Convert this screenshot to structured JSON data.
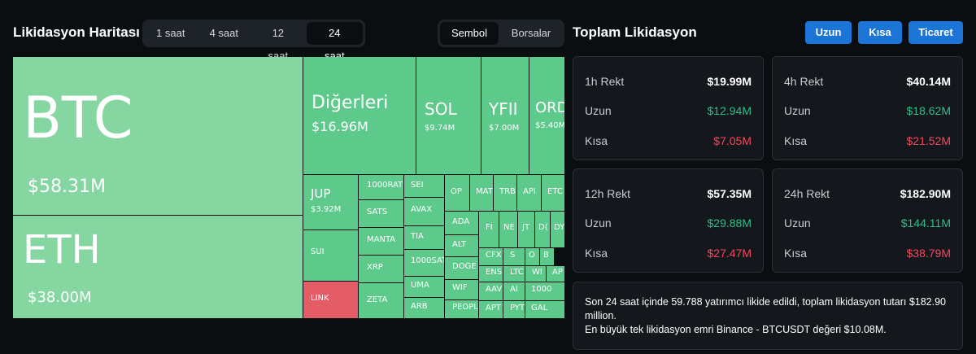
{
  "header": {
    "title": "Likidasyon Haritası",
    "timeframes": [
      "1 saat",
      "4 saat",
      "12 saat",
      "24 saat"
    ],
    "active_timeframe": "24 saat",
    "view_options": [
      "Sembol",
      "Borsalar"
    ],
    "active_view": "Sembol",
    "total_title": "Toplam Likidasyon",
    "buttons": {
      "long": "Uzun",
      "short": "Kısa",
      "trade": "Ticaret"
    }
  },
  "colors": {
    "long_green": "#2ebd85",
    "short_red": "#f6465d",
    "tile_green": "#5dca8c",
    "tile_light_green": "#86d6a2",
    "tile_red": "#e45c66",
    "button_blue": "#1b74d6"
  },
  "treemap": [
    {
      "symbol": "BTC",
      "value": "$58.31M",
      "tone": "light"
    },
    {
      "symbol": "ETH",
      "value": "$38.00M",
      "tone": "light"
    },
    {
      "symbol": "Diğerleri",
      "value": "$16.96M",
      "tone": "green"
    },
    {
      "symbol": "SOL",
      "value": "$9.74M",
      "tone": "green"
    },
    {
      "symbol": "YFII",
      "value": "$7.00M",
      "tone": "green"
    },
    {
      "symbol": "ORD",
      "value": "$5.40M",
      "tone": "green"
    },
    {
      "symbol": "JUP",
      "value": "$3.92M",
      "tone": "green"
    },
    {
      "symbol": "1000RATS",
      "tone": "green"
    },
    {
      "symbol": "SATS",
      "tone": "green"
    },
    {
      "symbol": "MANTA",
      "tone": "green"
    },
    {
      "symbol": "XRP",
      "tone": "green"
    },
    {
      "symbol": "ZETA",
      "tone": "green"
    },
    {
      "symbol": "SUI",
      "tone": "green"
    },
    {
      "symbol": "LINK",
      "tone": "red"
    },
    {
      "symbol": "SEI",
      "tone": "green"
    },
    {
      "symbol": "AVAX",
      "tone": "green"
    },
    {
      "symbol": "TIA",
      "tone": "green"
    },
    {
      "symbol": "1000SAT",
      "tone": "green"
    },
    {
      "symbol": "UMA",
      "tone": "green"
    },
    {
      "symbol": "ARB",
      "tone": "green"
    },
    {
      "symbol": "OP",
      "tone": "green"
    },
    {
      "symbol": "MAT",
      "tone": "green"
    },
    {
      "symbol": "TRB",
      "tone": "green"
    },
    {
      "symbol": "API",
      "tone": "green"
    },
    {
      "symbol": "ETC",
      "tone": "green"
    },
    {
      "symbol": "ADA",
      "tone": "green"
    },
    {
      "symbol": "ALT",
      "tone": "green"
    },
    {
      "symbol": "DOGE",
      "tone": "green"
    },
    {
      "symbol": "WIF",
      "tone": "green"
    },
    {
      "symbol": "PEOPL",
      "tone": "green"
    },
    {
      "symbol": "FI",
      "tone": "green"
    },
    {
      "symbol": "NE",
      "tone": "green"
    },
    {
      "symbol": "JT",
      "tone": "green"
    },
    {
      "symbol": "D(",
      "tone": "green"
    },
    {
      "symbol": "DY",
      "tone": "green"
    },
    {
      "symbol": "CFX",
      "tone": "green"
    },
    {
      "symbol": "S",
      "tone": "green"
    },
    {
      "symbol": "O",
      "tone": "green"
    },
    {
      "symbol": "B",
      "tone": "green"
    },
    {
      "symbol": "ENS",
      "tone": "green"
    },
    {
      "symbol": "LTC",
      "tone": "green"
    },
    {
      "symbol": "WI",
      "tone": "green"
    },
    {
      "symbol": "AP",
      "tone": "green"
    },
    {
      "symbol": "AAV",
      "tone": "green"
    },
    {
      "symbol": "AI",
      "tone": "green"
    },
    {
      "symbol": "1000",
      "tone": "green"
    },
    {
      "symbol": "APT",
      "tone": "green"
    },
    {
      "symbol": "PYT",
      "tone": "green"
    },
    {
      "symbol": "GAL",
      "tone": "green"
    }
  ],
  "stats": [
    {
      "period": "1h Rekt",
      "total": "$19.99M",
      "long_label": "Uzun",
      "long": "$12.94M",
      "short_label": "Kısa",
      "short": "$7.05M"
    },
    {
      "period": "4h Rekt",
      "total": "$40.14M",
      "long_label": "Uzun",
      "long": "$18.62M",
      "short_label": "Kısa",
      "short": "$21.52M"
    },
    {
      "period": "12h Rekt",
      "total": "$57.35M",
      "long_label": "Uzun",
      "long": "$29.88M",
      "short_label": "Kısa",
      "short": "$27.47M"
    },
    {
      "period": "24h Rekt",
      "total": "$182.90M",
      "long_label": "Uzun",
      "long": "$144.11M",
      "short_label": "Kısa",
      "short": "$38.79M"
    }
  ],
  "summary": {
    "line1": "Son 24 saat içinde 59.788 yatırımcı likide edildi, toplam likidasyon tutarı $182.90 million.",
    "line2": "En büyük tek likidasyon emri Binance - BTCUSDT değeri $10.08M."
  }
}
